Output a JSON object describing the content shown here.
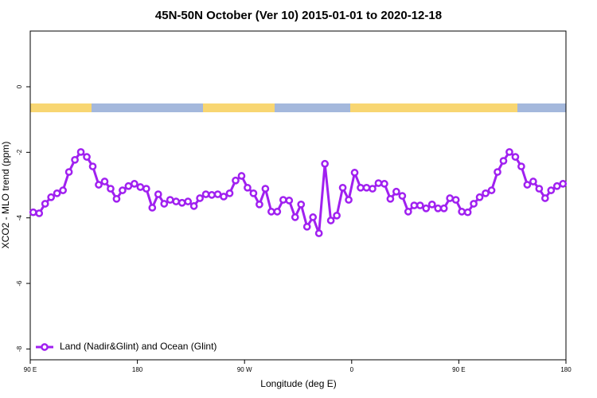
{
  "chart_data": {
    "type": "line",
    "title": "45N-50N October (Ver 10)   2015-01-01 to 2020-12-18",
    "x_label": "Longitude (deg E)",
    "y_label": "XCO2 - MLO trend (ppm)",
    "xlim": [
      90,
      540
    ],
    "ylim": [
      -8.33,
      1.7
    ],
    "xticks": [
      {
        "value": 90,
        "label": "90 E"
      },
      180,
      {
        "value": 270,
        "label": "90 W"
      },
      {
        "value": 360,
        "label": "0"
      },
      {
        "value": 450,
        "label": "90 E"
      },
      {
        "value": 540,
        "label": "180"
      }
    ],
    "yticks": [
      0,
      -2,
      -4,
      -6,
      -8
    ],
    "grid": false,
    "legend": "bottom-left",
    "x": [
      92.5,
      97.5,
      102.5,
      107.5,
      112.5,
      117.5,
      122.5,
      127.5,
      132.5,
      137.5,
      142.5,
      147.5,
      152.5,
      157.5,
      162.5,
      167.5,
      172.5,
      177.5,
      182.5,
      187.5,
      192.5,
      197.5,
      202.5,
      207.5,
      212.5,
      217.5,
      222.5,
      227.5,
      232.5,
      237.5,
      242.5,
      247.5,
      252.5,
      257.5,
      262.5,
      267.5,
      272.5,
      277.5,
      282.5,
      287.5,
      292.5,
      297.5,
      302.5,
      307.5,
      312.5,
      317.5,
      322.5,
      327.5,
      332.5,
      337.5,
      342.5,
      347.5,
      352.5,
      357.5,
      362.5,
      367.5,
      372.5,
      377.5,
      382.5,
      387.5,
      392.5,
      397.5,
      402.5,
      407.5,
      412.5,
      417.5,
      422.5,
      427.5,
      432.5,
      437.5,
      442.5,
      447.5,
      452.5,
      457.5,
      462.5,
      467.5,
      472.5,
      477.5,
      482.5,
      487.5,
      492.5,
      497.5,
      502.5,
      507.5,
      512.5,
      517.5,
      522.5,
      527.5,
      532.5,
      537.5
    ],
    "series": [
      {
        "name": "Land (Nadir&Glint) and Ocean (Glint)",
        "color": "#a020f0",
        "values": [
          -3.83,
          -3.86,
          -3.57,
          -3.37,
          -3.25,
          -3.16,
          -2.6,
          -2.23,
          -1.99,
          -2.14,
          -2.43,
          -2.99,
          -2.89,
          -3.11,
          -3.42,
          -3.16,
          -3.03,
          -2.96,
          -3.06,
          -3.11,
          -3.69,
          -3.28,
          -3.57,
          -3.45,
          -3.5,
          -3.54,
          -3.5,
          -3.64,
          -3.4,
          -3.28,
          -3.3,
          -3.28,
          -3.35,
          -3.25,
          -2.86,
          -2.72,
          -3.08,
          -3.25,
          -3.59,
          -3.11,
          -3.81,
          -3.81,
          -3.45,
          -3.47,
          -3.98,
          -3.59,
          -4.27,
          -3.98,
          -4.47,
          -2.35,
          -4.08,
          -3.93,
          -3.08,
          -3.45,
          -2.62,
          -3.08,
          -3.08,
          -3.11,
          -2.94,
          -2.96,
          -3.42,
          -3.2,
          -3.33,
          -3.81,
          -3.62,
          -3.62,
          -3.71,
          -3.59,
          -3.71,
          -3.71,
          -3.4,
          -3.45,
          -3.81,
          -3.83,
          -3.57,
          -3.37,
          -3.25,
          -3.16,
          -2.6,
          -2.26,
          -1.99,
          -2.14,
          -2.43,
          -2.99,
          -2.89,
          -3.11,
          -3.4,
          -3.16,
          -3.03,
          -2.96
        ]
      }
    ]
  }
}
